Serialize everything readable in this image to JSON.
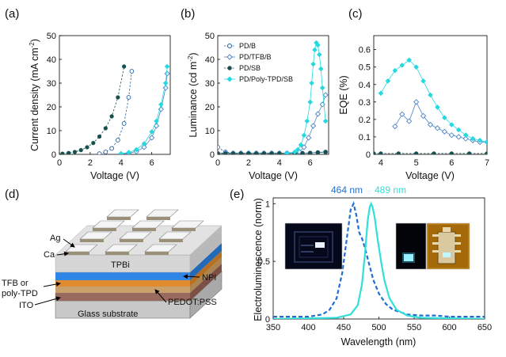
{
  "panels": {
    "a": {
      "label": "(a)"
    },
    "b": {
      "label": "(b)"
    },
    "c": {
      "label": "(c)"
    },
    "d": {
      "label": "(d)"
    },
    "e": {
      "label": "(e)"
    }
  },
  "series_style": {
    "PD/B": {
      "color": "#1f5f9e",
      "marker": "open-circle"
    },
    "PD/TFB/B": {
      "color": "#4f86c6",
      "marker": "open-diamond"
    },
    "PD/SB": {
      "color": "#17504e",
      "marker": "filled-circle"
    },
    "PD/Poly-TPD/SB": {
      "color": "#25d9e0",
      "marker": "filled-diamond"
    }
  },
  "chart_data": [
    {
      "id": "a",
      "type": "line",
      "xlabel": "Voltage (V)",
      "ylabel": "Current density (mA cm",
      "ylabel_sup": "-2",
      "ylabel_end": ")",
      "xlim": [
        0,
        7.2
      ],
      "ylim": [
        0,
        50
      ],
      "xticks": [
        0,
        2,
        4,
        6
      ],
      "yticks": [
        0,
        10,
        20,
        30,
        40,
        50
      ],
      "series": [
        {
          "name": "PD/SB",
          "x": [
            0.2,
            0.6,
            1,
            1.4,
            1.8,
            2.2,
            2.6,
            3,
            3.4,
            3.8,
            4.2
          ],
          "y": [
            0.3,
            0.6,
            1.0,
            1.8,
            3,
            4.8,
            7.5,
            11,
            16,
            24,
            37
          ]
        },
        {
          "name": "PD/B",
          "x": [
            2.6,
            3,
            3.4,
            3.8,
            4.2,
            4.5,
            4.7
          ],
          "y": [
            0.3,
            1,
            2.5,
            6,
            13,
            24,
            35
          ]
        },
        {
          "name": "PD/TFB/B",
          "x": [
            4,
            4.5,
            5,
            5.5,
            6,
            6.3,
            6.6,
            6.9,
            7
          ],
          "y": [
            0.2,
            0.5,
            1.2,
            3,
            7,
            12,
            19,
            28,
            34
          ]
        },
        {
          "name": "PD/Poly-TPD/SB",
          "x": [
            4,
            4.5,
            5,
            5.5,
            6,
            6.3,
            6.6,
            6.9,
            7
          ],
          "y": [
            0.3,
            0.8,
            2,
            4.5,
            9.5,
            14,
            21,
            30,
            37
          ]
        }
      ]
    },
    {
      "id": "b",
      "type": "line",
      "xlabel": "Voltage (V)",
      "ylabel": "Luminance (cd m",
      "ylabel_sup": "-2",
      "ylabel_end": ")",
      "xlim": [
        0,
        7.2
      ],
      "ylim": [
        0,
        50
      ],
      "xticks": [
        0,
        2,
        4,
        6
      ],
      "yticks": [
        0,
        10,
        20,
        30,
        40,
        50
      ],
      "series": [
        {
          "name": "PD/B",
          "x": [
            0,
            0.5,
            1,
            1.5,
            2,
            2.5,
            3,
            3.5,
            4,
            4.5,
            5,
            5.5,
            6,
            6.5,
            7
          ],
          "y": [
            3,
            1,
            0.5,
            0.5,
            0.5,
            0.5,
            0.5,
            0.5,
            0.5,
            0.5,
            0.5,
            0.5,
            0.6,
            0.8,
            1
          ]
        },
        {
          "name": "PD/TFB/B",
          "x": [
            0,
            0.5,
            1,
            1.5,
            2,
            2.5,
            3,
            3.5,
            4,
            4.5,
            5,
            5.3,
            5.6,
            5.9,
            6.2,
            6.5,
            6.8,
            7
          ],
          "y": [
            0.5,
            0.5,
            0.5,
            0.5,
            0.5,
            0.5,
            0.5,
            0.5,
            0.5,
            0.5,
            0.6,
            1,
            3,
            7,
            12,
            17,
            21,
            25
          ]
        },
        {
          "name": "PD/SB",
          "x": [
            0,
            0.5,
            1,
            1.5,
            2,
            2.5,
            3,
            3.5,
            4,
            4.5,
            5,
            5.5,
            6,
            6.5,
            7
          ],
          "y": [
            0.4,
            0.4,
            0.4,
            0.4,
            0.4,
            0.4,
            0.4,
            0.4,
            0.4,
            0.4,
            0.5,
            0.5,
            0.6,
            0.8,
            1
          ]
        },
        {
          "name": "PD/Poly-TPD/SB",
          "x": [
            4.5,
            5,
            5.2,
            5.4,
            5.6,
            5.8,
            6,
            6.1,
            6.2,
            6.3,
            6.4,
            6.5,
            6.6,
            6.7,
            6.8,
            7
          ],
          "y": [
            0.5,
            1,
            2,
            4,
            8,
            14,
            22,
            30,
            38,
            44,
            47,
            46,
            42,
            36,
            28,
            14
          ]
        }
      ],
      "legend_position": "top-left"
    },
    {
      "id": "c",
      "type": "line",
      "xlabel": "Voltage (V)",
      "ylabel": "EQE (%)",
      "xlim": [
        3.8,
        7
      ],
      "ylim": [
        0,
        0.68
      ],
      "xticks": [
        4,
        5,
        6,
        7
      ],
      "yticks": [
        0,
        0.1,
        0.2,
        0.3,
        0.4,
        0.5,
        0.6
      ],
      "ytick_labels": [
        "0",
        "0.1",
        "0.2",
        "0.3",
        "0.4",
        "0.5",
        "0.6"
      ],
      "series": [
        {
          "name": "PD/TFB/B",
          "x": [
            4.4,
            4.6,
            4.8,
            5,
            5.2,
            5.4,
            5.6,
            5.8,
            6,
            6.2,
            6.4,
            6.6,
            6.8,
            7
          ],
          "y": [
            0.16,
            0.23,
            0.19,
            0.3,
            0.22,
            0.17,
            0.15,
            0.13,
            0.11,
            0.1,
            0.09,
            0.08,
            0.07,
            0.07
          ]
        },
        {
          "name": "PD/Poly-TPD/SB",
          "x": [
            4,
            4.2,
            4.4,
            4.6,
            4.8,
            5,
            5.2,
            5.4,
            5.6,
            5.8,
            6,
            6.2,
            6.4,
            6.6,
            6.8,
            7
          ],
          "y": [
            0.35,
            0.42,
            0.48,
            0.51,
            0.54,
            0.5,
            0.42,
            0.34,
            0.27,
            0.21,
            0.17,
            0.14,
            0.11,
            0.09,
            0.08,
            0.07
          ]
        },
        {
          "name": "PD/SB",
          "x": [
            3.8,
            4,
            4.5,
            5,
            5.5,
            6,
            6.5,
            7
          ],
          "y": [
            0.005,
            0.005,
            0.005,
            0.005,
            0.005,
            0.005,
            0.005,
            0.005
          ]
        }
      ]
    },
    {
      "id": "e",
      "type": "line",
      "xlabel": "Wavelength (nm)",
      "ylabel": "Electroluminescence (norm)",
      "xlim": [
        350,
        650
      ],
      "ylim": [
        0,
        1.05
      ],
      "xticks": [
        350,
        400,
        450,
        500,
        550,
        600,
        650
      ],
      "yticks": [
        0,
        0.5,
        1
      ],
      "series": [
        {
          "name": "464 nm emission",
          "color": "#1f6fd0",
          "dashed": true,
          "x": [
            350,
            380,
            400,
            420,
            430,
            440,
            448,
            455,
            460,
            464,
            468,
            472,
            476,
            480,
            486,
            492,
            500,
            510,
            520,
            540,
            560,
            580,
            600,
            620,
            650
          ],
          "y": [
            0.02,
            0.02,
            0.02,
            0.04,
            0.08,
            0.18,
            0.4,
            0.72,
            0.95,
            1.0,
            0.9,
            0.75,
            0.7,
            0.62,
            0.48,
            0.34,
            0.22,
            0.13,
            0.08,
            0.04,
            0.03,
            0.03,
            0.02,
            0.02,
            0.02
          ]
        },
        {
          "name": "489 nm emission",
          "color": "#2fe0da",
          "dashed": false,
          "x": [
            350,
            440,
            460,
            470,
            476,
            480,
            484,
            487,
            489,
            491,
            494,
            498,
            503,
            508,
            515,
            525,
            540,
            560,
            650
          ],
          "y": [
            0,
            0.01,
            0.04,
            0.12,
            0.3,
            0.55,
            0.85,
            0.97,
            1.0,
            0.97,
            0.88,
            0.7,
            0.5,
            0.33,
            0.18,
            0.08,
            0.03,
            0.01,
            0
          ]
        }
      ],
      "annotations": [
        {
          "text": "464 nm",
          "color": "#1f6fd0"
        },
        {
          "text": "489 nm",
          "color": "#2fe0da"
        }
      ]
    }
  ],
  "device": {
    "layers": [
      {
        "label": "Ag"
      },
      {
        "label": "Ca"
      },
      {
        "label": "TPBi"
      },
      {
        "label": "NPI"
      },
      {
        "label": "TFB or"
      },
      {
        "label": "poly-TPD"
      },
      {
        "label": "ITO"
      },
      {
        "label": "PEDOT:PSS"
      },
      {
        "label": "Glass substrate"
      }
    ]
  }
}
